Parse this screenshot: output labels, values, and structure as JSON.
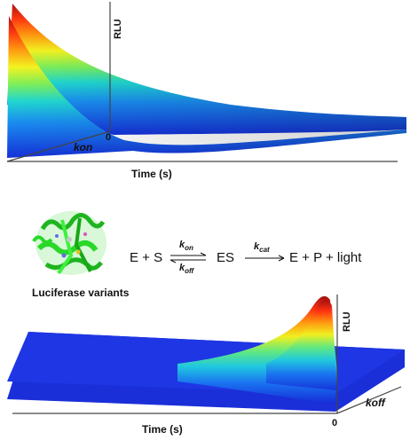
{
  "top_plot": {
    "y_axis_label": "RLU",
    "origin_label": "0",
    "depth_label": "kon",
    "x_axis_label": "Time (s)"
  },
  "mechanism": {
    "enzyme_label": "Luciferase variants",
    "reactants": "E + S",
    "forward_rate": {
      "symbol": "k",
      "sub": "on"
    },
    "reverse_rate": {
      "symbol": "k",
      "sub": "off"
    },
    "complex": "ES",
    "catalytic_rate": {
      "symbol": "k",
      "sub": "cat"
    },
    "products": "E + P + light"
  },
  "bottom_plot": {
    "y_axis_label": "RLU",
    "origin_label": "0",
    "depth_label": "koff",
    "x_axis_label": "Time (s)"
  },
  "colors": {
    "surface_low": "#1e33e0",
    "surface_mid": "#22d4c8",
    "surface_high": "#c81616",
    "protein": "#2fdc2f"
  }
}
